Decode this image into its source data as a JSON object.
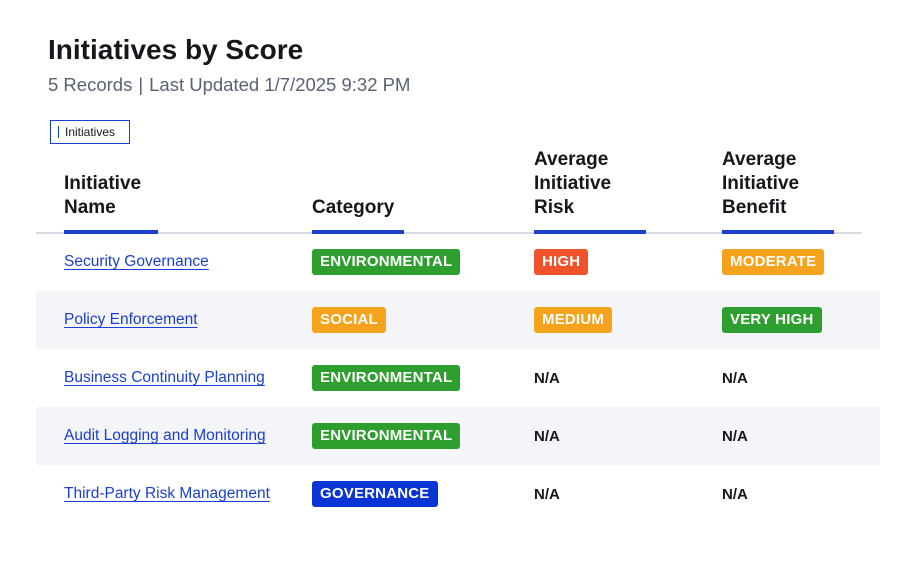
{
  "page": {
    "title": "Initiatives by Score",
    "records": "5 Records",
    "separator": "|",
    "last_updated": "Last Updated 1/7/2025 9:32 PM"
  },
  "tab": {
    "label": "Initiatives"
  },
  "table": {
    "headers": {
      "name_line1": "Initiative",
      "name_line2": "Name",
      "category": "Category",
      "risk_line1": "Average",
      "risk_line2": "Initiative",
      "risk_line3": "Risk",
      "benefit_line1": "Average",
      "benefit_line2": "Initiative",
      "benefit_line3": "Benefit"
    },
    "rows": [
      {
        "name": "Security Governance",
        "category": "ENVIRONMENTAL",
        "category_color": "#2e9e2e",
        "risk": "HIGH",
        "risk_color": "#f0522c",
        "benefit": "MODERATE",
        "benefit_color": "#f5a21c"
      },
      {
        "name": "Policy Enforcement",
        "category": "SOCIAL",
        "category_color": "#f5a21c",
        "risk": "MEDIUM",
        "risk_color": "#f5a21c",
        "benefit": "VERY HIGH",
        "benefit_color": "#2e9e2e"
      },
      {
        "name": "Business Continuity Planning",
        "category": "ENVIRONMENTAL",
        "category_color": "#2e9e2e",
        "risk": "N/A",
        "benefit": "N/A"
      },
      {
        "name": "Audit Logging and Monitoring",
        "category": "ENVIRONMENTAL",
        "category_color": "#2e9e2e",
        "risk": "N/A",
        "benefit": "N/A"
      },
      {
        "name": "Third-Party Risk Management",
        "category": "GOVERNANCE",
        "category_color": "#0b34d6",
        "risk": "N/A",
        "benefit": "N/A"
      }
    ]
  },
  "colors": {
    "accent": "#1b3fd0",
    "alt_row": "#f4f5f8"
  }
}
